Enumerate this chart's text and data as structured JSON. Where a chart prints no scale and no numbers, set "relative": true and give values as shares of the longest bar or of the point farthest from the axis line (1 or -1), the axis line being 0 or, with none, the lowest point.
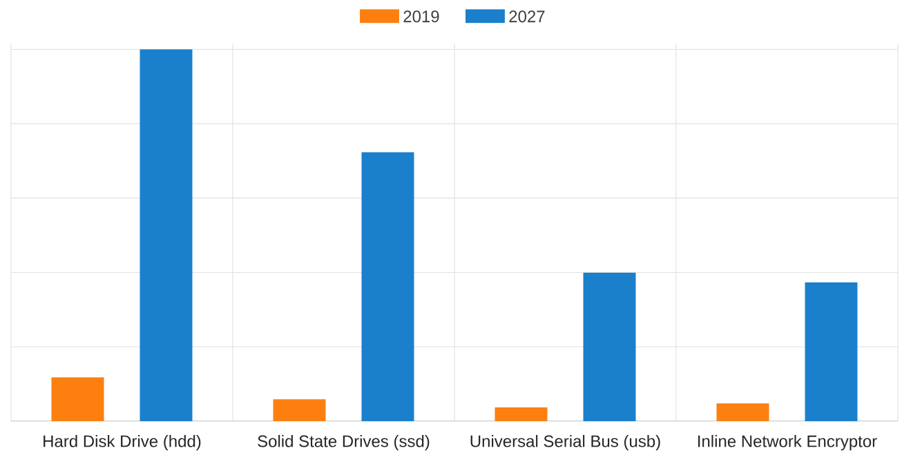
{
  "chart_data": {
    "type": "bar",
    "relative": true,
    "categories": [
      "Hard Disk Drive (hdd)",
      "Solid State Drives (ssd)",
      "Universal Serial Bus (usb)",
      "Inline Network Encryptor"
    ],
    "series": [
      {
        "name": "2019",
        "color": "#fd7f0f",
        "values": [
          0.118,
          0.059,
          0.037,
          0.048
        ]
      },
      {
        "name": "2027",
        "color": "#1a80cc",
        "values": [
          1,
          0.723,
          0.399,
          0.373
        ]
      }
    ],
    "grid": true,
    "legend": "top"
  }
}
